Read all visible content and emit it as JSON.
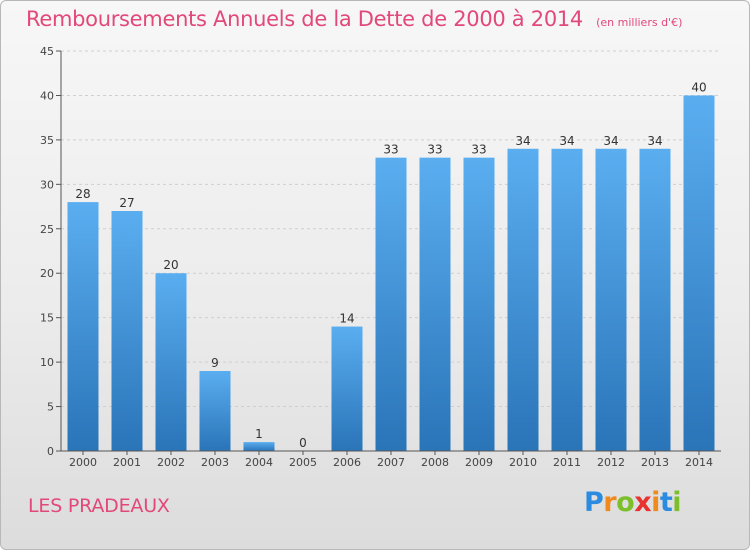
{
  "colors": {
    "title": "#e2487a",
    "bar_light": "#5aaef0",
    "bar_dark": "#2a74b8",
    "gridline": "#cfcfcf",
    "axis": "#555555"
  },
  "header": {
    "title": "Remboursements Annuels de la Dette de 2000 à 2014",
    "unit": "(en milliers d'€)"
  },
  "footer": {
    "commune": "LES PRADEAUX",
    "logo_letters": [
      "P",
      "r",
      "o",
      "x",
      "i",
      "t",
      "i"
    ],
    "logo_colors": [
      "#2b8be0",
      "#f08a1c",
      "#7cbf2a",
      "#e8322f",
      "#f08a1c",
      "#2b8be0",
      "#7cbf2a"
    ]
  },
  "chart_data": {
    "type": "bar",
    "title": "Remboursements Annuels de la Dette de 2000 à 2014",
    "xlabel": "",
    "ylabel": "",
    "categories": [
      "2000",
      "2001",
      "2002",
      "2003",
      "2004",
      "2005",
      "2006",
      "2007",
      "2008",
      "2009",
      "2010",
      "2011",
      "2012",
      "2013",
      "2014"
    ],
    "values": [
      28,
      27,
      20,
      9,
      1,
      0,
      14,
      33,
      33,
      33,
      34,
      34,
      34,
      34,
      40
    ],
    "ylim": [
      0,
      45
    ],
    "yticks": [
      0,
      5,
      10,
      15,
      20,
      25,
      30,
      35,
      40,
      45
    ],
    "grid": true
  }
}
